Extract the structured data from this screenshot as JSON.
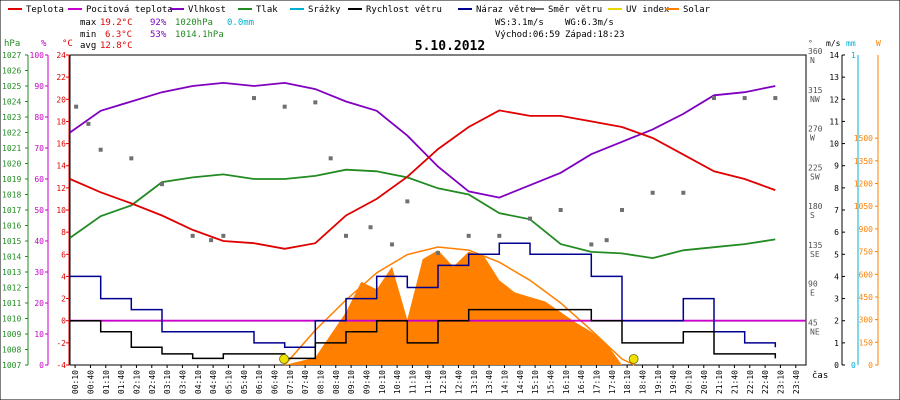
{
  "legend": [
    {
      "label": "Teplota",
      "color": "#e00000"
    },
    {
      "label": "Pocitová teplota",
      "color": "#cc00cc"
    },
    {
      "label": "Vlhkost",
      "color": "#8000c0"
    },
    {
      "label": "Tlak",
      "color": "#228b22"
    },
    {
      "label": "Srážky",
      "color": "#00b0d0"
    },
    {
      "label": "Rychlost větru",
      "color": "#000000"
    },
    {
      "label": "Náraz větru",
      "color": "#000090"
    },
    {
      "label": "Směr větru",
      "color": "#707070"
    },
    {
      "label": "UV index",
      "color": "#e8d800"
    },
    {
      "label": "Solar",
      "color": "#ff8000"
    }
  ],
  "stats": {
    "max_label": "max",
    "max_temp": "19.2°C",
    "max_hum": "92%",
    "max_press": "1020hPa",
    "rain": "0.0mm",
    "min_label": "min",
    "min_temp": "6.3°C",
    "min_hum": "53%",
    "min_press": "1014.1hPa",
    "avg_label": "avg",
    "avg_temp": "12.8°C"
  },
  "wind_info": {
    "ws": "WS:3.1m/s",
    "wg": "WG:6.3m/s",
    "sunrise": "Východ:06:59",
    "sunset": "Západ:18:23"
  },
  "chart_data": {
    "type": "line",
    "title": "5.10.2012",
    "x_unit": "čas",
    "x_range": [
      "00:00",
      "23:59"
    ],
    "x_ticks": [
      "00:10",
      "00:40",
      "01:10",
      "01:40",
      "02:10",
      "02:40",
      "03:10",
      "03:40",
      "04:10",
      "04:40",
      "05:10",
      "05:40",
      "06:10",
      "06:40",
      "07:10",
      "07:40",
      "08:10",
      "08:40",
      "09:10",
      "09:40",
      "10:10",
      "10:40",
      "11:10",
      "11:40",
      "12:10",
      "12:40",
      "13:10",
      "13:40",
      "14:10",
      "14:40",
      "15:10",
      "15:40",
      "16:10",
      "16:40",
      "17:10",
      "17:40",
      "18:10",
      "18:40",
      "19:10",
      "19:40",
      "20:10",
      "20:40",
      "21:10",
      "21:40",
      "22:10",
      "22:40",
      "23:10",
      "23:40"
    ],
    "axes": {
      "pressure": {
        "unit": "hPa",
        "color": "#228b22",
        "range": [
          1007,
          1027
        ],
        "ticks": [
          1007,
          1008,
          1009,
          1010,
          1011,
          1012,
          1013,
          1014,
          1015,
          1016,
          1017,
          1018,
          1019,
          1020,
          1021,
          1022,
          1023,
          1024,
          1025,
          1026,
          1027
        ]
      },
      "humidity": {
        "unit": "%",
        "color": "#cc00cc",
        "range": [
          0,
          100
        ],
        "ticks": [
          0,
          10,
          20,
          30,
          40,
          50,
          60,
          70,
          80,
          90,
          100
        ]
      },
      "temperature": {
        "unit": "°C",
        "color": "#e00000",
        "range": [
          -4,
          24
        ],
        "ticks": [
          -4,
          -2,
          0,
          2,
          4,
          6,
          8,
          10,
          12,
          14,
          16,
          18,
          20,
          22,
          24
        ]
      },
      "direction": {
        "unit": "°",
        "color": "#505050",
        "range": [
          0,
          360
        ],
        "ticks": [
          45,
          90,
          135,
          180,
          225,
          270,
          315,
          360
        ],
        "tick_labels": [
          "NE",
          "E",
          "SE",
          "S",
          "SW",
          "W",
          "NW",
          "N"
        ]
      },
      "wind": {
        "unit": "m/s",
        "color": "#000000",
        "range": [
          0,
          14
        ],
        "ticks": [
          0,
          1,
          2,
          3,
          4,
          5,
          6,
          7,
          8,
          9,
          10,
          11,
          12,
          13,
          14
        ]
      },
      "rain": {
        "unit": "mm",
        "color": "#00b0d0",
        "range": [
          0,
          1
        ],
        "ticks": [
          0,
          1
        ]
      },
      "solar": {
        "unit": "W",
        "color": "#ff8000",
        "range": [
          0,
          2050
        ],
        "ticks": [
          0,
          150,
          300,
          450,
          600,
          750,
          900,
          1050,
          1200,
          1350,
          1500
        ]
      }
    },
    "sunrise_h": 6.98,
    "sunset_h": 18.38,
    "series": [
      {
        "name": "Teplota",
        "axis": "temperature",
        "color": "#e00000",
        "points": [
          [
            0,
            12.8
          ],
          [
            1,
            11.6
          ],
          [
            2,
            10.6
          ],
          [
            3,
            9.5
          ],
          [
            4,
            8.2
          ],
          [
            5,
            7.2
          ],
          [
            6,
            7.0
          ],
          [
            7,
            6.5
          ],
          [
            8,
            7.0
          ],
          [
            9,
            9.5
          ],
          [
            10,
            11.0
          ],
          [
            11,
            13.0
          ],
          [
            12,
            15.5
          ],
          [
            13,
            17.5
          ],
          [
            14,
            19.0
          ],
          [
            15,
            18.5
          ],
          [
            16,
            18.5
          ],
          [
            17,
            18.0
          ],
          [
            18,
            17.5
          ],
          [
            19,
            16.5
          ],
          [
            20,
            15.0
          ],
          [
            21,
            13.5
          ],
          [
            22,
            12.8
          ],
          [
            23,
            11.8
          ]
        ]
      },
      {
        "name": "Pocitová teplota",
        "axis": "temperature",
        "color": "#cc00cc",
        "points": [
          [
            0,
            0
          ],
          [
            24,
            0
          ]
        ]
      },
      {
        "name": "Vlhkost",
        "axis": "humidity",
        "color": "#8000c0",
        "points": [
          [
            0,
            75
          ],
          [
            1,
            82
          ],
          [
            2,
            85
          ],
          [
            3,
            88
          ],
          [
            4,
            90
          ],
          [
            5,
            91
          ],
          [
            6,
            90
          ],
          [
            7,
            91
          ],
          [
            8,
            89
          ],
          [
            9,
            85
          ],
          [
            10,
            82
          ],
          [
            11,
            74
          ],
          [
            12,
            64
          ],
          [
            13,
            56
          ],
          [
            14,
            54
          ],
          [
            15,
            58
          ],
          [
            16,
            62
          ],
          [
            17,
            68
          ],
          [
            18,
            72
          ],
          [
            19,
            76
          ],
          [
            20,
            81
          ],
          [
            21,
            87
          ],
          [
            22,
            88
          ],
          [
            23,
            90
          ]
        ]
      },
      {
        "name": "Tlak",
        "axis": "pressure",
        "color": "#228b22",
        "points": [
          [
            0,
            1015.2
          ],
          [
            1,
            1016.6
          ],
          [
            2,
            1017.3
          ],
          [
            3,
            1018.8
          ],
          [
            4,
            1019.1
          ],
          [
            5,
            1019.3
          ],
          [
            6,
            1019.0
          ],
          [
            7,
            1019.0
          ],
          [
            8,
            1019.2
          ],
          [
            9,
            1019.6
          ],
          [
            10,
            1019.5
          ],
          [
            11,
            1019.1
          ],
          [
            12,
            1018.4
          ],
          [
            13,
            1018.0
          ],
          [
            14,
            1016.8
          ],
          [
            15,
            1016.4
          ],
          [
            16,
            1014.8
          ],
          [
            17,
            1014.3
          ],
          [
            18,
            1014.2
          ],
          [
            19,
            1013.9
          ],
          [
            20,
            1014.4
          ],
          [
            21,
            1014.6
          ],
          [
            22,
            1014.8
          ],
          [
            23,
            1015.1
          ]
        ]
      },
      {
        "name": "Rychlost větru",
        "axis": "wind",
        "color": "#000000",
        "points": [
          [
            0,
            2.0
          ],
          [
            1,
            1.5
          ],
          [
            2,
            0.8
          ],
          [
            3,
            0.5
          ],
          [
            4,
            0.3
          ],
          [
            5,
            0.5
          ],
          [
            6,
            0.5
          ],
          [
            7,
            0.3
          ],
          [
            8,
            1.0
          ],
          [
            9,
            1.5
          ],
          [
            10,
            2.0
          ],
          [
            11,
            1.0
          ],
          [
            12,
            2.0
          ],
          [
            13,
            2.5
          ],
          [
            14,
            2.5
          ],
          [
            15,
            2.5
          ],
          [
            16,
            2.5
          ],
          [
            17,
            2.0
          ],
          [
            18,
            1.0
          ],
          [
            19,
            1.0
          ],
          [
            20,
            1.5
          ],
          [
            21,
            0.5
          ],
          [
            22,
            0.5
          ],
          [
            23,
            0.3
          ]
        ]
      },
      {
        "name": "Náraz větru",
        "axis": "wind",
        "color": "#000090",
        "points": [
          [
            0,
            4.0
          ],
          [
            1,
            3.0
          ],
          [
            2,
            2.5
          ],
          [
            3,
            1.5
          ],
          [
            4,
            1.5
          ],
          [
            5,
            1.5
          ],
          [
            6,
            1.0
          ],
          [
            7,
            0.8
          ],
          [
            8,
            2.0
          ],
          [
            9,
            3.0
          ],
          [
            10,
            4.0
          ],
          [
            11,
            3.5
          ],
          [
            12,
            4.5
          ],
          [
            13,
            5.0
          ],
          [
            14,
            5.5
          ],
          [
            15,
            5.0
          ],
          [
            16,
            5.0
          ],
          [
            17,
            4.0
          ],
          [
            18,
            2.0
          ],
          [
            19,
            2.0
          ],
          [
            20,
            3.0
          ],
          [
            21,
            1.5
          ],
          [
            22,
            1.0
          ],
          [
            23,
            0.8
          ]
        ]
      },
      {
        "name": "Směr větru",
        "axis": "direction",
        "color": "#707070",
        "style": "dots",
        "points": [
          [
            0.2,
            300
          ],
          [
            0.6,
            280
          ],
          [
            1,
            250
          ],
          [
            2,
            240
          ],
          [
            3,
            210
          ],
          [
            4,
            150
          ],
          [
            4.6,
            145
          ],
          [
            5,
            150
          ],
          [
            6,
            310
          ],
          [
            7,
            300
          ],
          [
            8,
            305
          ],
          [
            8.5,
            240
          ],
          [
            9,
            150
          ],
          [
            9.8,
            160
          ],
          [
            10.5,
            140
          ],
          [
            11,
            190
          ],
          [
            12,
            130
          ],
          [
            13,
            150
          ],
          [
            14,
            150
          ],
          [
            15,
            170
          ],
          [
            16,
            180
          ],
          [
            17,
            140
          ],
          [
            17.5,
            145
          ],
          [
            18,
            180
          ],
          [
            19,
            200
          ],
          [
            20,
            200
          ],
          [
            21,
            310
          ],
          [
            22,
            310
          ],
          [
            23,
            310
          ]
        ]
      },
      {
        "name": "Solar",
        "axis": "solar",
        "color": "#ff8000",
        "style": "area",
        "points": [
          [
            7,
            0
          ],
          [
            8,
            50
          ],
          [
            9,
            350
          ],
          [
            9.5,
            550
          ],
          [
            10,
            500
          ],
          [
            10.5,
            650
          ],
          [
            11,
            300
          ],
          [
            11.5,
            700
          ],
          [
            12,
            760
          ],
          [
            12.5,
            650
          ],
          [
            13,
            750
          ],
          [
            13.5,
            720
          ],
          [
            14,
            560
          ],
          [
            14.5,
            480
          ],
          [
            15,
            450
          ],
          [
            15.5,
            420
          ],
          [
            16,
            350
          ],
          [
            16.5,
            280
          ],
          [
            17,
            220
          ],
          [
            17.5,
            140
          ],
          [
            18,
            0
          ]
        ]
      },
      {
        "name": "Solar max",
        "axis": "solar",
        "color": "#ff8000",
        "style": "line",
        "points": [
          [
            7,
            0
          ],
          [
            8,
            230
          ],
          [
            9,
            430
          ],
          [
            10,
            610
          ],
          [
            11,
            730
          ],
          [
            12,
            780
          ],
          [
            13,
            760
          ],
          [
            14,
            680
          ],
          [
            15,
            560
          ],
          [
            16,
            410
          ],
          [
            17,
            230
          ],
          [
            18,
            40
          ],
          [
            18.4,
            0
          ]
        ]
      }
    ]
  }
}
